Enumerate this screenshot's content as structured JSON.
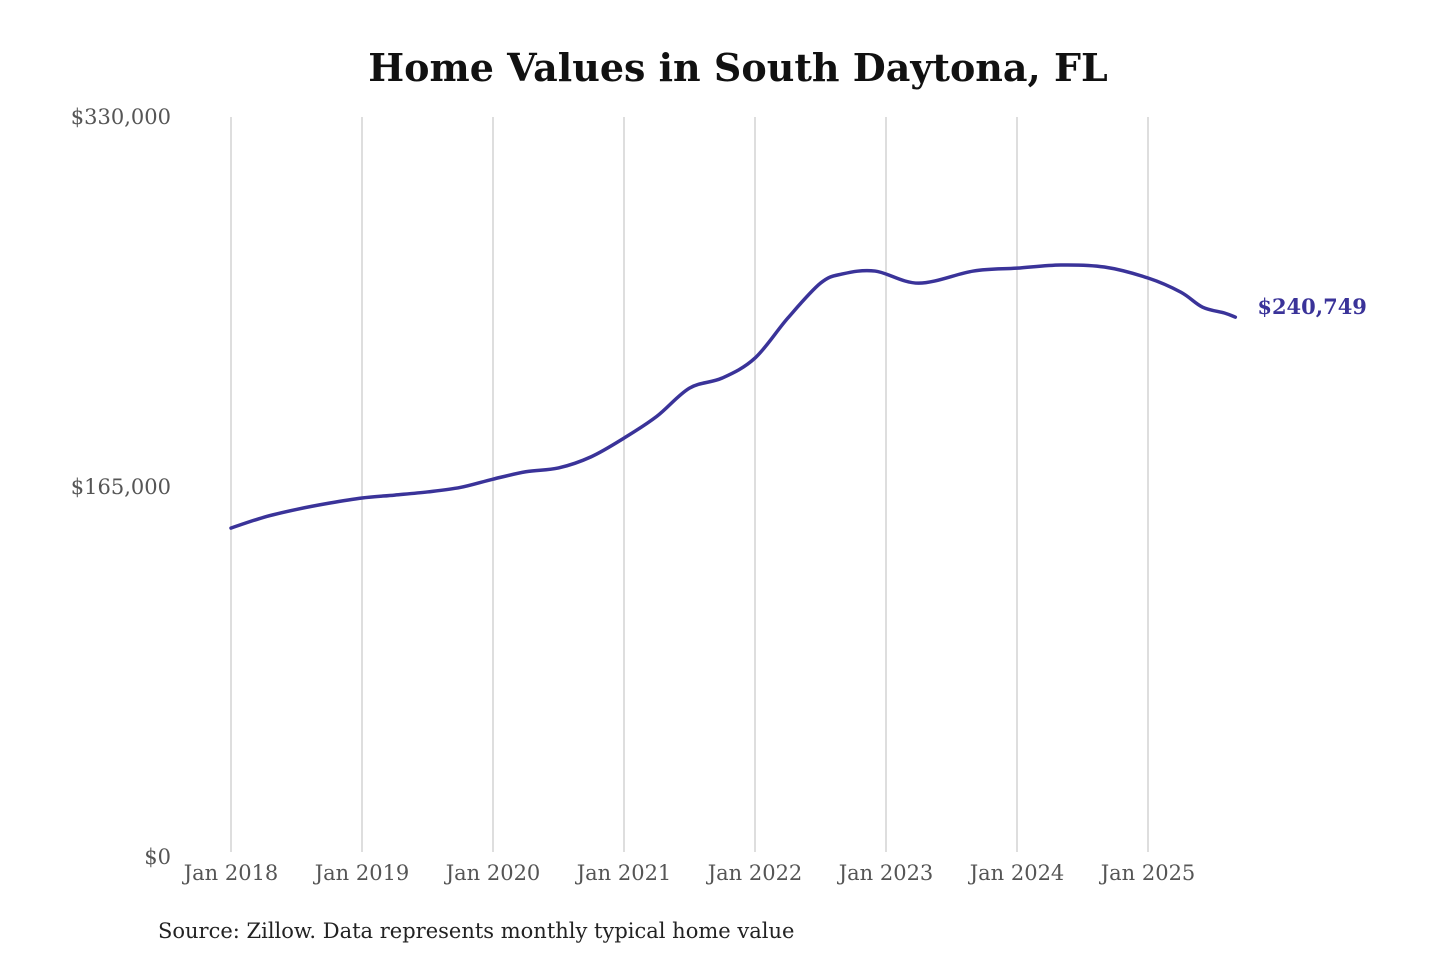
{
  "chart_data": {
    "type": "line",
    "title": "Home Values in South Daytona, FL",
    "source": "Source: Zillow. Data represents monthly typical home value",
    "ylim": [
      0,
      330000
    ],
    "y_ticks": [
      {
        "value": 0,
        "label": "$0"
      },
      {
        "value": 165000,
        "label": "$165,000"
      },
      {
        "value": 330000,
        "label": "$330,000"
      }
    ],
    "x_ticks": [
      {
        "value": "2018-01",
        "label": "Jan 2018"
      },
      {
        "value": "2019-01",
        "label": "Jan 2019"
      },
      {
        "value": "2020-01",
        "label": "Jan 2020"
      },
      {
        "value": "2021-01",
        "label": "Jan 2021"
      },
      {
        "value": "2022-01",
        "label": "Jan 2022"
      },
      {
        "value": "2023-01",
        "label": "Jan 2023"
      },
      {
        "value": "2024-01",
        "label": "Jan 2024"
      },
      {
        "value": "2025-01",
        "label": "Jan 2025"
      }
    ],
    "grid": "vertical",
    "line_color": "#3a3399",
    "end_label": "$240,749",
    "series": [
      {
        "x": [
          "2018-01",
          "2018-04",
          "2018-07",
          "2018-10",
          "2019-01",
          "2019-04",
          "2019-07",
          "2019-10",
          "2020-01",
          "2020-04",
          "2020-07",
          "2020-10",
          "2021-01",
          "2021-04",
          "2021-07",
          "2021-10",
          "2022-01",
          "2022-04",
          "2022-07",
          "2022-09",
          "2022-12",
          "2023-04",
          "2023-09",
          "2024-01",
          "2024-05",
          "2024-09",
          "2025-01",
          "2025-04",
          "2025-06",
          "2025-08",
          "2025-09"
        ],
        "values": [
          146700,
          151500,
          155000,
          157800,
          160100,
          161400,
          162800,
          164800,
          168500,
          171800,
          173500,
          178500,
          186800,
          196500,
          209100,
          213600,
          222500,
          240300,
          255900,
          260000,
          261300,
          255900,
          261300,
          262600,
          264000,
          263100,
          258200,
          251900,
          245200,
          242600,
          240749
        ]
      }
    ]
  }
}
